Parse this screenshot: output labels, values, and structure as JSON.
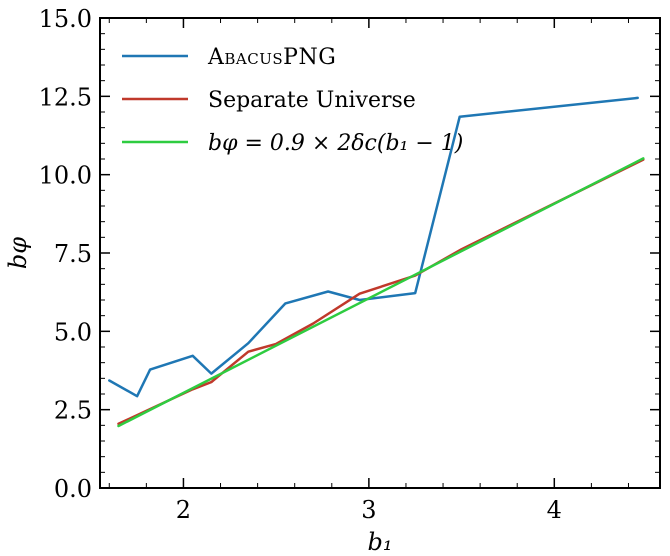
{
  "chart_data": {
    "type": "line",
    "xlabel": "b₁",
    "ylabel": "bφ",
    "xlim": [
      1.55,
      4.57
    ],
    "ylim": [
      0.0,
      15.0
    ],
    "xticks": [
      2,
      3,
      4
    ],
    "xtick_labels": [
      "2",
      "3",
      "4"
    ],
    "yticks": [
      0.0,
      2.5,
      5.0,
      7.5,
      10.0,
      12.5,
      15.0
    ],
    "ytick_labels": [
      "0.0",
      "2.5",
      "5.0",
      "7.5",
      "10.0",
      "12.5",
      "15.0"
    ],
    "grid": false,
    "legend_position": "top-left",
    "series": [
      {
        "name": "AbacusPNG",
        "color": "#1f77b4",
        "x": [
          1.6,
          1.75,
          1.82,
          2.05,
          2.15,
          2.35,
          2.55,
          2.78,
          2.95,
          3.25,
          3.49,
          4.45
        ],
        "y": [
          3.43,
          2.93,
          3.78,
          4.22,
          3.65,
          4.62,
          5.89,
          6.27,
          6.0,
          6.22,
          11.85,
          12.45
        ]
      },
      {
        "name": "Separate Universe",
        "color": "#c0392b",
        "x": [
          1.65,
          1.85,
          2.05,
          2.15,
          2.35,
          2.5,
          2.7,
          2.95,
          3.25,
          3.5,
          4.48
        ],
        "y": [
          2.05,
          2.6,
          3.15,
          3.38,
          4.35,
          4.6,
          5.25,
          6.2,
          6.78,
          7.62,
          10.48
        ]
      },
      {
        "name": "bφ = 0.9 × 2δc(b₁ − 1)",
        "color": "#2ecc40",
        "x": [
          1.65,
          4.48
        ],
        "y": [
          1.98,
          10.52
        ]
      }
    ]
  }
}
